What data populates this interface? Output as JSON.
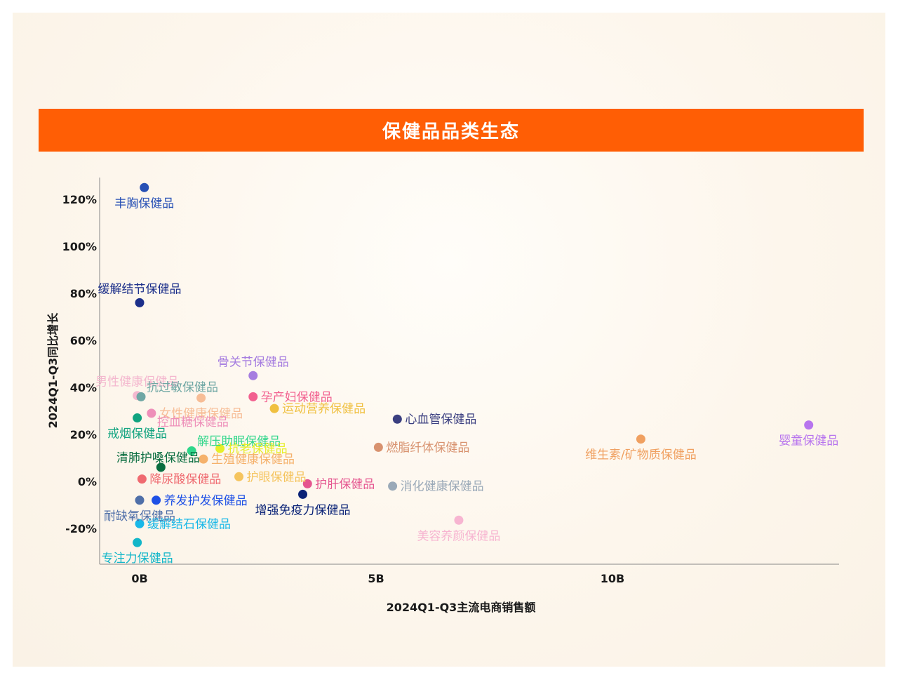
{
  "title": "保健品品类生态",
  "chart_data": {
    "type": "scatter",
    "title": "保健品品类生态",
    "xlabel": "2024Q1-Q3主流电商销售额",
    "ylabel": "2024Q1-Q3同比增长",
    "x_unit": "B",
    "y_unit": "%",
    "xlim": [
      -0.8,
      15.5
    ],
    "ylim": [
      -36,
      130
    ],
    "x_ticks": [
      {
        "value": 0,
        "label": "0B"
      },
      {
        "value": 5,
        "label": "5B"
      },
      {
        "value": 10,
        "label": "10B"
      }
    ],
    "y_ticks": [
      {
        "value": 120,
        "label": "120%"
      },
      {
        "value": 100,
        "label": "100%"
      },
      {
        "value": 80,
        "label": "80%"
      },
      {
        "value": 60,
        "label": "60%"
      },
      {
        "value": 40,
        "label": "40%"
      },
      {
        "value": 20,
        "label": "20%"
      },
      {
        "value": 0,
        "label": "0%"
      },
      {
        "value": -20,
        "label": "-20%"
      }
    ],
    "grid": false,
    "points": [
      {
        "name": "丰胸保健品",
        "x": 0.1,
        "y": 125,
        "color": "#2750b5",
        "label_pos": "below"
      },
      {
        "name": "缓解结节保健品",
        "x": 0.0,
        "y": 76,
        "color": "#1c2f8a",
        "label_pos": "above"
      },
      {
        "name": "骨关节保健品",
        "x": 2.4,
        "y": 45,
        "color": "#a67de0",
        "label_pos": "above"
      },
      {
        "name": "男性健康保健品",
        "x": -0.05,
        "y": 36.5,
        "color": "#f4b8cf",
        "label_pos": "above"
      },
      {
        "name": "抗过敏保健品",
        "x": 0.03,
        "y": 36,
        "color": "#6fa7a4",
        "label_pos": "above-right"
      },
      {
        "name": "女性健康保健品",
        "x": 1.3,
        "y": 35.5,
        "color": "#f7bd96",
        "label_pos": "below"
      },
      {
        "name": "孕产妇保健品",
        "x": 2.4,
        "y": 36,
        "color": "#f2608f",
        "label_pos": "right"
      },
      {
        "name": "运动营养保健品",
        "x": 2.85,
        "y": 31,
        "color": "#f0c040",
        "label_pos": "right"
      },
      {
        "name": "控血糖保健品",
        "x": 0.25,
        "y": 29,
        "color": "#ee8fb9",
        "label_pos": "below-right"
      },
      {
        "name": "戒烟保健品",
        "x": -0.05,
        "y": 27,
        "color": "#10a37f",
        "label_pos": "below"
      },
      {
        "name": "心血管保健品",
        "x": 5.45,
        "y": 26.5,
        "color": "#3b3f80",
        "label_pos": "right"
      },
      {
        "name": "婴童保健品",
        "x": 14.15,
        "y": 24,
        "color": "#b774ee",
        "label_pos": "below"
      },
      {
        "name": "维生素/矿物质保健品",
        "x": 10.6,
        "y": 18,
        "color": "#f0a060",
        "label_pos": "below"
      },
      {
        "name": "解压助眠保健品",
        "x": 1.1,
        "y": 13,
        "color": "#2fd68a",
        "label_pos": "above-right"
      },
      {
        "name": "抗老保健品",
        "x": 1.7,
        "y": 14,
        "color": "#e6ee2a",
        "label_pos": "right"
      },
      {
        "name": "燃脂纤体保健品",
        "x": 5.05,
        "y": 14.5,
        "color": "#d8926f",
        "label_pos": "right"
      },
      {
        "name": "清肺护嗓保健品",
        "x": 0.45,
        "y": 6,
        "color": "#0a6d40",
        "label_pos": "above-left"
      },
      {
        "name": "生殖健康保健品",
        "x": 1.35,
        "y": 9.5,
        "color": "#f5b16b",
        "label_pos": "right"
      },
      {
        "name": "降尿酸保健品",
        "x": 0.05,
        "y": 1,
        "color": "#ef6a70",
        "label_pos": "right"
      },
      {
        "name": "护眼保健品",
        "x": 2.1,
        "y": 2,
        "color": "#f5c45e",
        "label_pos": "right"
      },
      {
        "name": "护肝保健品",
        "x": 3.55,
        "y": -1,
        "color": "#e5558f",
        "label_pos": "right"
      },
      {
        "name": "消化健康保健品",
        "x": 5.35,
        "y": -2,
        "color": "#9aa9b8",
        "label_pos": "right"
      },
      {
        "name": "养发护发保健品",
        "x": 0.35,
        "y": -8,
        "color": "#1e50e6",
        "label_pos": "right"
      },
      {
        "name": "耐缺氧保健品",
        "x": 0.0,
        "y": -8,
        "color": "#4f6fa8",
        "label_pos": "below"
      },
      {
        "name": "增强免疫力保健品",
        "x": 3.45,
        "y": -5.5,
        "color": "#0b2377",
        "label_pos": "below"
      },
      {
        "name": "缓解结石保健品",
        "x": 0.0,
        "y": -18,
        "color": "#18b8e8",
        "label_pos": "right"
      },
      {
        "name": "美容养颜保健品",
        "x": 6.75,
        "y": -16.5,
        "color": "#f7b5d1",
        "label_pos": "below"
      },
      {
        "name": "专注力保健品",
        "x": -0.05,
        "y": -26,
        "color": "#12b6c9",
        "label_pos": "below"
      }
    ]
  }
}
